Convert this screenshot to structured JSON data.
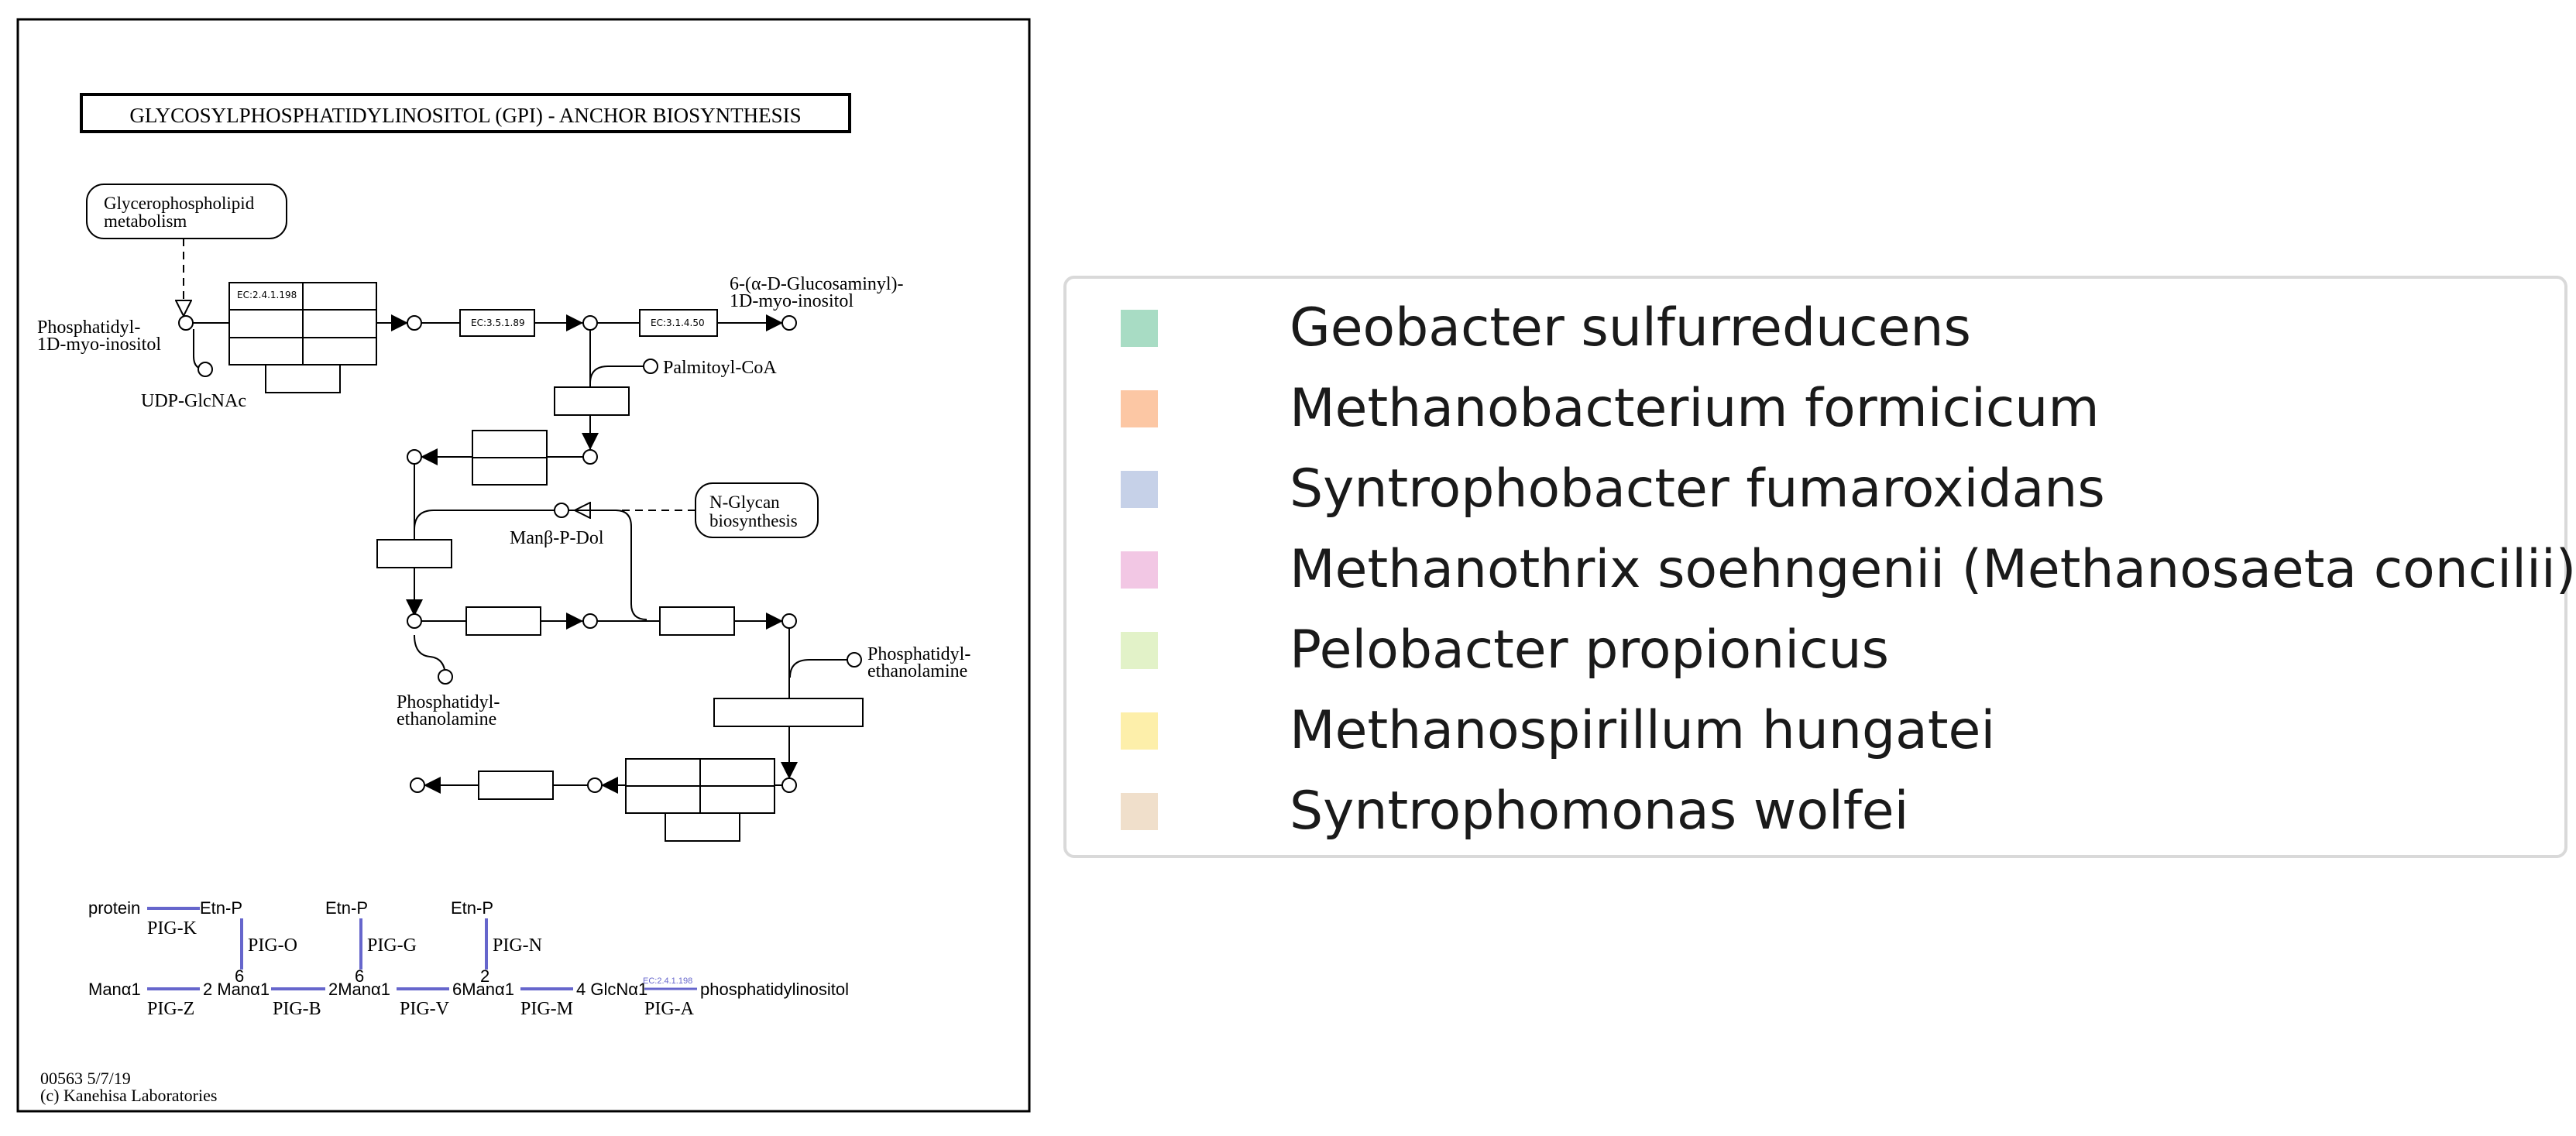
{
  "pathway": {
    "title": "GLYCOSYLPHOSPHATIDYLINOSITOL (GPI) - ANCHOR BIOSYNTHESIS",
    "map_boxes": {
      "glycerophospholipid": [
        "Glycerophospholipid",
        "metabolism"
      ],
      "n_glycan": [
        "N-Glycan",
        "biosynthesis"
      ]
    },
    "compounds": {
      "phosphatidyl_inositol": [
        "Phosphatidyl-",
        "1D-myo-inositol"
      ],
      "udp_glcnac": "UDP-GlcNAc",
      "glucosaminyl": [
        "6-(α-D-Glucosaminyl)-",
        "1D-myo-inositol"
      ],
      "palmitoyl_coa": "Palmitoyl-CoA",
      "man_p_dol": "Manβ-P-Dol",
      "pe_right": [
        "Phosphatidyl-",
        "ethanolamine"
      ],
      "pe_left": [
        "Phosphatidyl-",
        "ethanolamine"
      ]
    },
    "enzymes": {
      "e1": "EC:2.4.1.198",
      "e2": "EC:3.5.1.89",
      "e3": "EC:3.1.4.50"
    },
    "structure": {
      "row1": [
        "protein",
        "Etn-P",
        "Etn-P",
        "Etn-P"
      ],
      "row1_genes": [
        "PIG-K",
        "PIG-O",
        "PIG-G",
        "PIG-N"
      ],
      "link_numbers": [
        "6",
        "6",
        "2"
      ],
      "row2": [
        "Manα1",
        "2 Manα1",
        "2Manα1",
        "6Manα1",
        "4 GlcNα1",
        "phosphatidylinositol"
      ],
      "row2_genes": [
        "PIG-Z",
        "PIG-B",
        "PIG-V",
        "PIG-M",
        "PIG-A"
      ],
      "ec_small": "EC:2.4.1.198"
    },
    "footer": [
      "00563 5/7/19",
      "(c) Kanehisa Laboratories"
    ]
  },
  "legend": {
    "items": [
      {
        "label": "Geobacter sulfurreducens",
        "color": "#a8dcc4"
      },
      {
        "label": "Methanobacterium formicicum",
        "color": "#fcc7a4"
      },
      {
        "label": "Syntrophobacter fumaroxidans",
        "color": "#c6d1e8"
      },
      {
        "label": "Methanothrix soehngenii (Methanosaeta concilii)",
        "color": "#f2c7e4"
      },
      {
        "label": "Pelobacter propionicus",
        "color": "#e2f2c8"
      },
      {
        "label": "Methanospirillum hungatei",
        "color": "#fdefaa"
      },
      {
        "label": "Syntrophomonas wolfei",
        "color": "#f0dfcb"
      }
    ]
  }
}
